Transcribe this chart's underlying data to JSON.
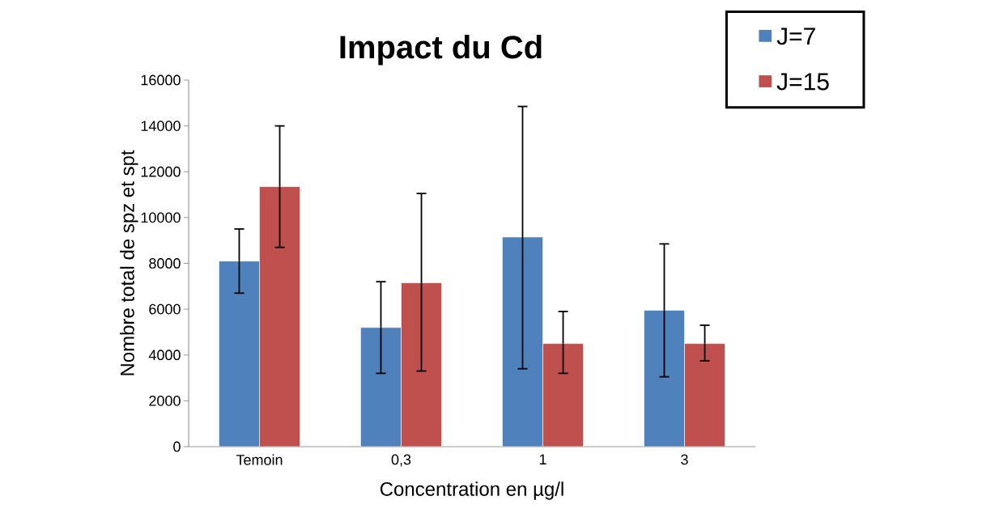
{
  "chart_data": {
    "type": "bar",
    "title": "Impact du Cd",
    "xlabel": "Concentration en µg/l",
    "ylabel": "Nombre  total de spz et spt",
    "categories": [
      "Temoin",
      "0,3",
      "1",
      "3"
    ],
    "series": [
      {
        "name": "J=7",
        "color": "#4f81bd",
        "values": [
          8100,
          5200,
          9150,
          5950
        ],
        "errors": [
          [
            6700,
            9500
          ],
          [
            3200,
            7200
          ],
          [
            3400,
            14850
          ],
          [
            3050,
            8850
          ]
        ]
      },
      {
        "name": "J=15",
        "color": "#c0504d",
        "values": [
          11350,
          7150,
          4500,
          4500
        ],
        "errors": [
          [
            8700,
            14000
          ],
          [
            3300,
            11050
          ],
          [
            3200,
            5900
          ],
          [
            3750,
            5300
          ]
        ]
      }
    ],
    "ylim": [
      0,
      16000
    ],
    "yticks": [
      0,
      2000,
      4000,
      6000,
      8000,
      10000,
      12000,
      14000,
      16000
    ],
    "grid": false,
    "legend": "top right"
  }
}
